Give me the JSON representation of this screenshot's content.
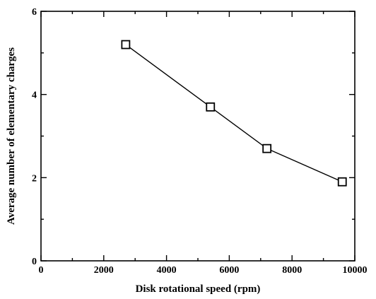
{
  "chart_data": {
    "type": "line",
    "title": "",
    "xlabel": "Disk rotational speed (rpm)",
    "ylabel": "Average number of elementary charges",
    "xlim": [
      0,
      10000
    ],
    "ylim": [
      0,
      6
    ],
    "xticks": [
      0,
      2000,
      4000,
      6000,
      8000,
      10000
    ],
    "yticks": [
      0,
      2,
      4,
      6
    ],
    "grid": false,
    "legend": "none",
    "marker": "open-square",
    "series": [
      {
        "x": [
          2700,
          5400,
          7200,
          9600
        ],
        "y": [
          5.2,
          3.7,
          2.7,
          1.9
        ]
      }
    ]
  }
}
